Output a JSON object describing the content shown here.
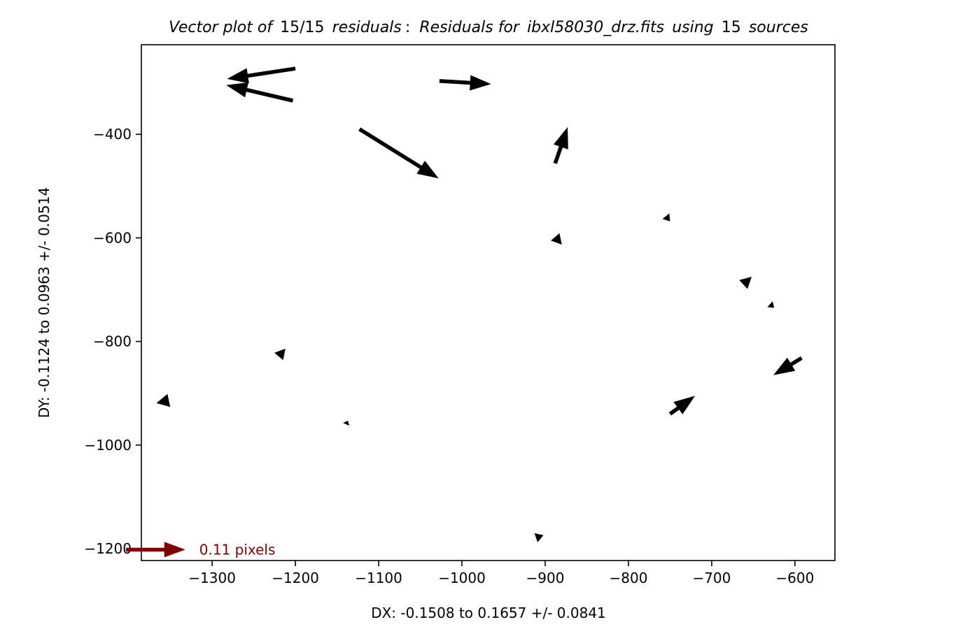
{
  "chart_data": {
    "type": "quiver",
    "title": {
      "prefix": "Vector plot of",
      "fraction": "15/15",
      "middle": "residuals",
      "colon": ":",
      "residuals_for": "Residuals for",
      "file_name": "ibxl58030_drz.fits",
      "using": "using",
      "source_count": "15",
      "sources": "sources"
    },
    "xlabel": "DX: -0.1508 to 0.1657 +/- 0.0841",
    "ylabel": "DY: -0.1124 to 0.0963 +/- 0.0514",
    "xlim": [
      -1385,
      -552
    ],
    "ylim": [
      -1223,
      -227
    ],
    "xticks": [
      -1300,
      -1200,
      -1100,
      -1000,
      -900,
      -800,
      -700,
      -600
    ],
    "xtick_labels": [
      "−1300",
      "−1200",
      "−1100",
      "−1000",
      "−900",
      "−800",
      "−700",
      "−600"
    ],
    "yticks": [
      -400,
      -600,
      -800,
      -1000,
      -1200
    ],
    "ytick_labels": [
      "−400",
      "−600",
      "−800",
      "−1000",
      "−1200"
    ],
    "vectors": [
      {
        "x": -1200,
        "y": -273,
        "dx": -82,
        "dy": -20
      },
      {
        "x": -1203,
        "y": -335,
        "dx": -80,
        "dy": 30
      },
      {
        "x": -1027,
        "y": -297,
        "dx": 62,
        "dy": -6
      },
      {
        "x": -1123,
        "y": -390,
        "dx": 95,
        "dy": -95
      },
      {
        "x": -888,
        "y": -456,
        "dx": 15,
        "dy": 70
      },
      {
        "x": -755,
        "y": -558,
        "dx": 5,
        "dy": -10
      },
      {
        "x": -888,
        "y": -598,
        "dx": 8,
        "dy": -15
      },
      {
        "x": -662,
        "y": -690,
        "dx": 10,
        "dy": 15
      },
      {
        "x": -630,
        "y": -728,
        "dx": 5,
        "dy": -7
      },
      {
        "x": -1220,
        "y": -829,
        "dx": 8,
        "dy": 15
      },
      {
        "x": -1352,
        "y": -914,
        "dx": -15,
        "dy": -5
      },
      {
        "x": -1139,
        "y": -960,
        "dx": 2,
        "dy": 7
      },
      {
        "x": -750,
        "y": -940,
        "dx": 30,
        "dy": 35
      },
      {
        "x": -592,
        "y": -832,
        "dx": -34,
        "dy": -33
      },
      {
        "x": -911,
        "y": -1179,
        "dx": 9,
        "dy": 5
      }
    ],
    "key": {
      "label": "0.11 pixels",
      "x": -1385,
      "y": -1202,
      "dx": 41,
      "dy": 0
    },
    "colors": {
      "vectors": "#000000",
      "key": "#800000"
    },
    "grid": false,
    "legend": "bottom-left"
  }
}
